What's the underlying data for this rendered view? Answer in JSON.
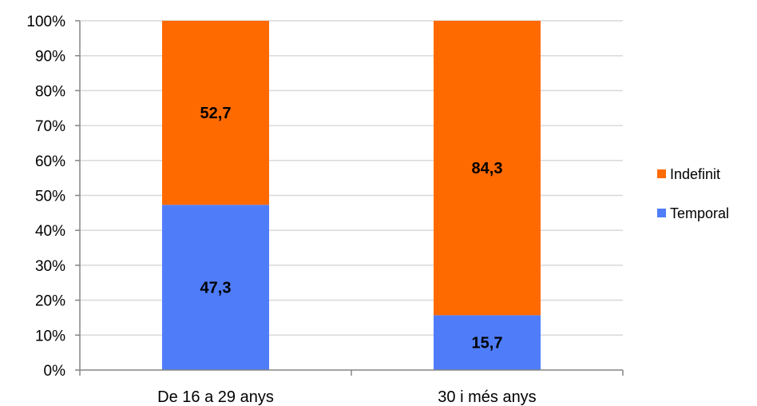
{
  "chart_data": {
    "type": "bar",
    "stacked": true,
    "categories": [
      "De 16 a 29 anys",
      "30 i més anys"
    ],
    "series": [
      {
        "name": "Temporal",
        "values": [
          47.3,
          15.7
        ],
        "labels": [
          "47,3",
          "15,7"
        ],
        "color": "#4f7df9"
      },
      {
        "name": "Indefinit",
        "values": [
          52.7,
          84.3
        ],
        "labels": [
          "52,7",
          "84,3"
        ],
        "color": "#ff6a00"
      }
    ],
    "ylim": [
      0,
      100
    ],
    "yticks": [
      "0%",
      "10%",
      "20%",
      "30%",
      "40%",
      "50%",
      "60%",
      "70%",
      "80%",
      "90%",
      "100%"
    ],
    "grid": true,
    "legend_position": "right",
    "legend_order": [
      "Indefinit",
      "Temporal"
    ]
  }
}
